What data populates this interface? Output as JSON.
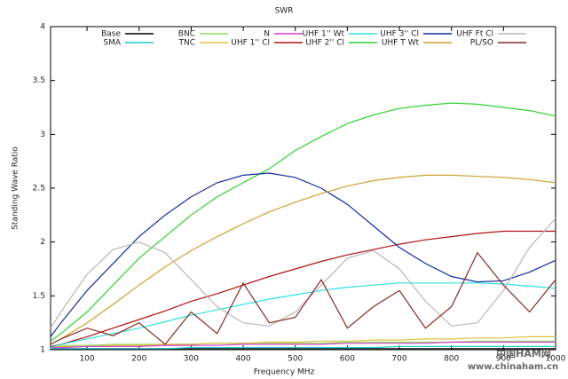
{
  "chart_data": {
    "type": "line",
    "title": "SWR",
    "x_label": "Frequency MHz",
    "y_label": "Standing Wave Ratio",
    "x": [
      30,
      50,
      100,
      150,
      200,
      250,
      300,
      350,
      400,
      450,
      500,
      550,
      600,
      650,
      700,
      750,
      800,
      850,
      900,
      950,
      1000
    ],
    "xlim": [
      30,
      1000
    ],
    "xticks": [
      100,
      200,
      300,
      400,
      500,
      600,
      700,
      800,
      900,
      1000
    ],
    "ylim": [
      1,
      4
    ],
    "yticks": [
      1,
      1.5,
      2,
      2.5,
      3,
      3.5,
      4
    ],
    "legend": "top",
    "series": [
      {
        "name": "Base",
        "color": "#000000",
        "values": [
          1.01,
          1.01,
          1.01,
          1.01,
          1.01,
          1.01,
          1.01,
          1.01,
          1.01,
          1.01,
          1.01,
          1.01,
          1.01,
          1.01,
          1.01,
          1.01,
          1.01,
          1.01,
          1.01,
          1.01,
          1.01
        ]
      },
      {
        "name": "SMA",
        "color": "#20c8d0",
        "values": [
          1.01,
          1.01,
          1.01,
          1.01,
          1.01,
          1.01,
          1.02,
          1.02,
          1.02,
          1.02,
          1.02,
          1.02,
          1.02,
          1.02,
          1.03,
          1.03,
          1.03,
          1.03,
          1.03,
          1.03,
          1.03
        ]
      },
      {
        "name": "BNC",
        "color": "#90e060",
        "values": [
          1.03,
          1.04,
          1.04,
          1.05,
          1.05,
          1.05,
          1.05,
          1.06,
          1.06,
          1.06,
          1.06,
          1.06,
          1.07,
          1.07,
          1.07,
          1.07,
          1.07,
          1.08,
          1.08,
          1.08,
          1.08
        ]
      },
      {
        "name": "TNC",
        "color": "#e0c040",
        "values": [
          1.02,
          1.03,
          1.03,
          1.04,
          1.04,
          1.05,
          1.05,
          1.06,
          1.06,
          1.07,
          1.07,
          1.08,
          1.08,
          1.09,
          1.09,
          1.1,
          1.1,
          1.11,
          1.11,
          1.12,
          1.12
        ]
      },
      {
        "name": "N",
        "color": "#d040d0",
        "values": [
          1.02,
          1.02,
          1.03,
          1.03,
          1.03,
          1.04,
          1.04,
          1.04,
          1.05,
          1.05,
          1.05,
          1.05,
          1.06,
          1.06,
          1.06,
          1.06,
          1.07,
          1.07,
          1.07,
          1.07,
          1.07
        ]
      },
      {
        "name": "UHF 1'' Cl",
        "color": "#b01010",
        "values": [
          1.03,
          1.05,
          1.12,
          1.2,
          1.28,
          1.36,
          1.45,
          1.52,
          1.6,
          1.68,
          1.75,
          1.82,
          1.88,
          1.93,
          1.98,
          2.02,
          2.05,
          2.08,
          2.1,
          2.1,
          2.1
        ]
      },
      {
        "name": "UHF 1'' Wt",
        "color": "#30e0e0",
        "values": [
          1.02,
          1.05,
          1.1,
          1.15,
          1.2,
          1.26,
          1.32,
          1.37,
          1.42,
          1.47,
          1.51,
          1.55,
          1.58,
          1.6,
          1.62,
          1.62,
          1.62,
          1.62,
          1.61,
          1.59,
          1.57
        ]
      },
      {
        "name": "UHF 2'' Cl",
        "color": "#30d030",
        "values": [
          1.08,
          1.15,
          1.35,
          1.6,
          1.85,
          2.05,
          2.25,
          2.42,
          2.55,
          2.68,
          2.85,
          2.98,
          3.1,
          3.18,
          3.24,
          3.27,
          3.29,
          3.28,
          3.25,
          3.22,
          3.17
        ]
      },
      {
        "name": "UHF 3'' Cl",
        "color": "#102ca0",
        "values": [
          1.12,
          1.25,
          1.55,
          1.8,
          2.05,
          2.25,
          2.42,
          2.55,
          2.62,
          2.64,
          2.6,
          2.5,
          2.35,
          2.15,
          1.95,
          1.8,
          1.68,
          1.63,
          1.64,
          1.72,
          1.83
        ]
      },
      {
        "name": "UHF T Wt",
        "color": "#d0a030",
        "values": [
          1.05,
          1.1,
          1.25,
          1.42,
          1.6,
          1.77,
          1.92,
          2.05,
          2.17,
          2.28,
          2.37,
          2.45,
          2.52,
          2.57,
          2.6,
          2.62,
          2.62,
          2.61,
          2.6,
          2.58,
          2.55
        ]
      },
      {
        "name": "UHF Ft Cl",
        "color": "#b8b8b8",
        "values": [
          1.2,
          1.35,
          1.7,
          1.93,
          2.0,
          1.9,
          1.65,
          1.4,
          1.25,
          1.22,
          1.35,
          1.6,
          1.85,
          1.92,
          1.75,
          1.45,
          1.22,
          1.25,
          1.55,
          1.95,
          2.22
        ]
      },
      {
        "name": "PL/SO",
        "color": "#8a2a20",
        "values": [
          1.05,
          1.1,
          1.2,
          1.13,
          1.25,
          1.05,
          1.35,
          1.15,
          1.62,
          1.25,
          1.3,
          1.65,
          1.2,
          1.4,
          1.55,
          1.2,
          1.4,
          1.9,
          1.6,
          1.35,
          1.65
        ]
      }
    ],
    "watermark": [
      "中国HAM网",
      "www.chinaham.cn"
    ]
  }
}
